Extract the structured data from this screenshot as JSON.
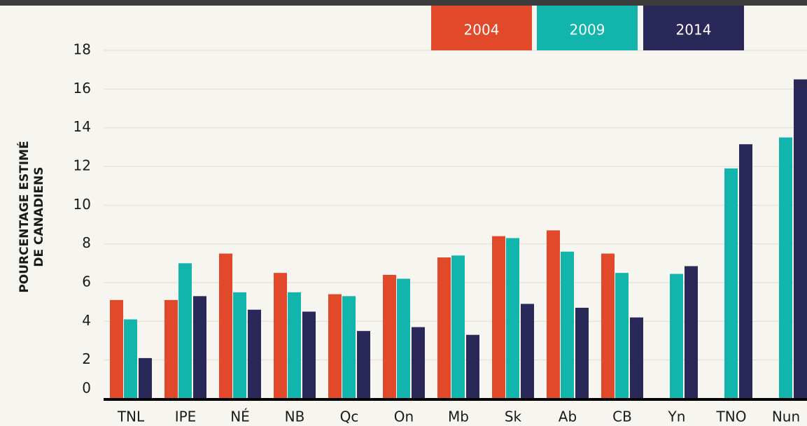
{
  "chart_data": {
    "type": "bar",
    "ylabel": [
      "POURCENTAGE ESTIMÉ",
      "DE CANADIENS"
    ],
    "categories": [
      "TNL",
      "IPE",
      "NÉ",
      "NB",
      "Qc",
      "On",
      "Mb",
      "Sk",
      "Ab",
      "CB",
      "Yn",
      "TNO",
      "Nun"
    ],
    "series": [
      {
        "name": "2004",
        "color": "#e2492a",
        "values": [
          5.1,
          5.1,
          7.5,
          6.5,
          5.4,
          6.4,
          7.3,
          8.4,
          8.7,
          7.5,
          null,
          null,
          null
        ]
      },
      {
        "name": "2009",
        "color": "#12b5ac",
        "values": [
          4.1,
          7.0,
          5.5,
          5.5,
          5.3,
          6.2,
          7.4,
          8.3,
          7.6,
          6.5,
          6.45,
          11.9,
          13.5
        ]
      },
      {
        "name": "2014",
        "color": "#2a2858",
        "values": [
          2.1,
          5.3,
          4.6,
          4.5,
          3.5,
          3.7,
          3.3,
          4.9,
          4.7,
          4.2,
          6.85,
          13.15,
          16.5
        ]
      }
    ],
    "ylim": [
      0,
      18
    ],
    "yticks": [
      0,
      2,
      4,
      6,
      8,
      10,
      12,
      14,
      16,
      18
    ],
    "grid": true
  }
}
